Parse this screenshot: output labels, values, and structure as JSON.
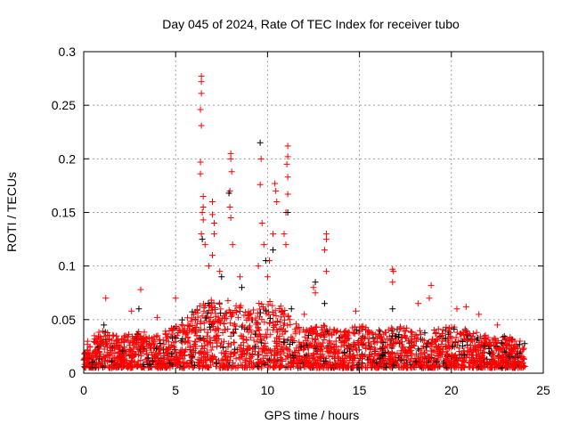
{
  "chart_data": {
    "type": "scatter",
    "title": "Day 045 of 2024, Rate Of TEC Index for receiver tubo",
    "xlabel": "GPS time / hours",
    "ylabel": "ROTI / TECUs",
    "xlim": [
      0,
      25
    ],
    "ylim": [
      0,
      0.3
    ],
    "xticks": [
      "0",
      "5",
      "10",
      "15",
      "20",
      "25"
    ],
    "xtick_values": [
      0,
      5,
      10,
      15,
      20,
      25
    ],
    "yticks": [
      "0",
      "0.05",
      "0.1",
      "0.15",
      "0.2",
      "0.25",
      "0.3"
    ],
    "ytick_values": [
      0,
      0.05,
      0.1,
      0.15,
      0.2,
      0.25,
      0.3
    ],
    "grid": true,
    "marker": "plus",
    "colors": {
      "primary": "#ff0000",
      "secondary": "#000000",
      "grid": "#a0a0a0"
    },
    "data_range_hours": [
      0,
      24
    ],
    "dense_band": {
      "description": "approximate upper envelope of dense ROTI points per hour",
      "hours": [
        0,
        1,
        2,
        3,
        4,
        5,
        6,
        7,
        8,
        9,
        10,
        11,
        12,
        13,
        14,
        15,
        16,
        17,
        18,
        19,
        20,
        21,
        22,
        23,
        24
      ],
      "upper": [
        0.03,
        0.04,
        0.035,
        0.04,
        0.035,
        0.045,
        0.06,
        0.07,
        0.07,
        0.06,
        0.07,
        0.06,
        0.04,
        0.045,
        0.04,
        0.045,
        0.04,
        0.045,
        0.04,
        0.04,
        0.045,
        0.04,
        0.035,
        0.035,
        0.03
      ],
      "lower": 0.005
    },
    "series": [
      {
        "name": "red",
        "color": "#ff0000",
        "points": [
          [
            6.4,
            0.277
          ],
          [
            6.4,
            0.272
          ],
          [
            6.4,
            0.261
          ],
          [
            6.35,
            0.246
          ],
          [
            6.4,
            0.231
          ],
          [
            6.35,
            0.197
          ],
          [
            6.35,
            0.186
          ],
          [
            6.5,
            0.165
          ],
          [
            6.5,
            0.155
          ],
          [
            6.45,
            0.15
          ],
          [
            6.5,
            0.143
          ],
          [
            6.4,
            0.13
          ],
          [
            6.6,
            0.12
          ],
          [
            7.0,
            0.16
          ],
          [
            7.0,
            0.148
          ],
          [
            7.1,
            0.14
          ],
          [
            7.1,
            0.13
          ],
          [
            7.0,
            0.11
          ],
          [
            8.0,
            0.205
          ],
          [
            8.0,
            0.2
          ],
          [
            8.05,
            0.188
          ],
          [
            7.95,
            0.17
          ],
          [
            7.95,
            0.155
          ],
          [
            8.0,
            0.145
          ],
          [
            8.1,
            0.12
          ],
          [
            9.65,
            0.2
          ],
          [
            9.6,
            0.176
          ],
          [
            9.7,
            0.14
          ],
          [
            9.8,
            0.12
          ],
          [
            10.4,
            0.177
          ],
          [
            10.45,
            0.17
          ],
          [
            10.5,
            0.16
          ],
          [
            10.3,
            0.13
          ],
          [
            11.1,
            0.212
          ],
          [
            11.1,
            0.202
          ],
          [
            11.05,
            0.195
          ],
          [
            11.1,
            0.183
          ],
          [
            11.1,
            0.167
          ],
          [
            11.0,
            0.15
          ],
          [
            10.9,
            0.13
          ],
          [
            11.0,
            0.12
          ],
          [
            13.2,
            0.13
          ],
          [
            13.2,
            0.125
          ],
          [
            13.1,
            0.115
          ],
          [
            13.2,
            0.095
          ],
          [
            12.5,
            0.08
          ],
          [
            12.6,
            0.075
          ],
          [
            16.8,
            0.097
          ],
          [
            16.85,
            0.095
          ],
          [
            16.8,
            0.085
          ],
          [
            18.9,
            0.082
          ],
          [
            18.8,
            0.07
          ],
          [
            3.1,
            0.078
          ],
          [
            1.2,
            0.07
          ],
          [
            5.0,
            0.07
          ],
          [
            9.5,
            0.1
          ],
          [
            10.1,
            0.105
          ],
          [
            10.0,
            0.09
          ],
          [
            7.4,
            0.095
          ],
          [
            8.5,
            0.09
          ],
          [
            6.8,
            0.1
          ],
          [
            20.3,
            0.06
          ],
          [
            20.8,
            0.062
          ],
          [
            14.8,
            0.058
          ],
          [
            22.5,
            0.045
          ],
          [
            18.2,
            0.065
          ],
          [
            2.6,
            0.058
          ],
          [
            4.0,
            0.052
          ],
          [
            12.0,
            0.055
          ],
          [
            21.5,
            0.055
          ]
        ]
      },
      {
        "name": "black",
        "color": "#000000",
        "points": [
          [
            9.6,
            0.215
          ],
          [
            7.9,
            0.168
          ],
          [
            11.1,
            0.15
          ],
          [
            6.45,
            0.125
          ],
          [
            10.3,
            0.115
          ],
          [
            9.9,
            0.105
          ],
          [
            7.5,
            0.09
          ],
          [
            12.6,
            0.085
          ],
          [
            13.1,
            0.065
          ],
          [
            16.8,
            0.06
          ],
          [
            1.1,
            0.045
          ],
          [
            3.0,
            0.06
          ],
          [
            8.6,
            0.08
          ],
          [
            11.3,
            0.06
          ]
        ]
      }
    ]
  }
}
